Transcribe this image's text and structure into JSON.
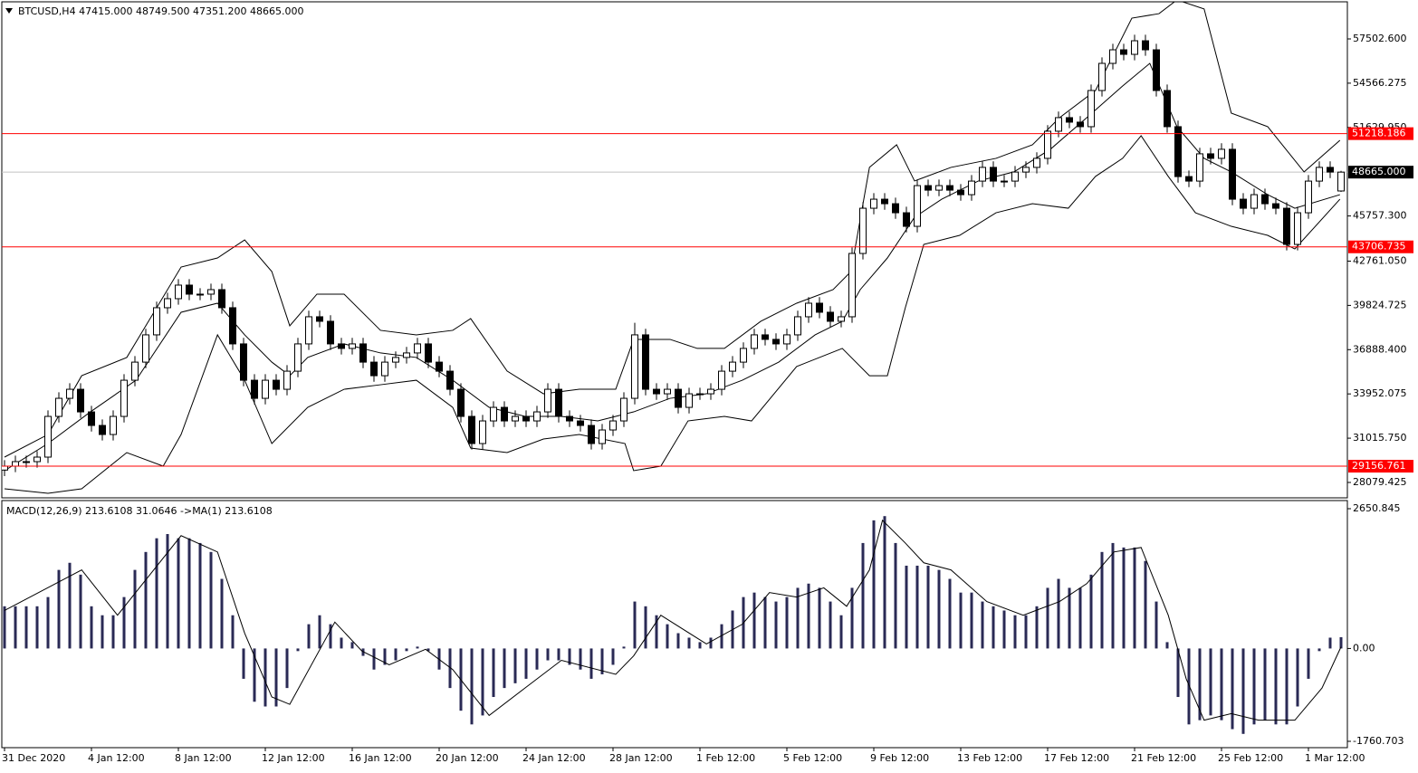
{
  "chart_data": [
    {
      "type": "candlestick",
      "title": "BTCUSD,H4  47415.000 48749.500 47351.200 48665.000",
      "categories": [
        "31 Dec 2020",
        null,
        null,
        null,
        null,
        null,
        null,
        null,
        "4 Jan 12:00",
        null,
        null,
        null,
        null,
        null,
        null,
        null,
        "8 Jan 12:00",
        null,
        null,
        null,
        null,
        null,
        null,
        null,
        "12 Jan 12:00",
        null,
        null,
        null,
        null,
        null,
        null,
        null,
        "16 Jan 12:00",
        null,
        null,
        null,
        null,
        null,
        null,
        null,
        "20 Jan 12:00",
        null,
        null,
        null,
        null,
        null,
        null,
        null,
        "24 Jan 12:00",
        null,
        null,
        null,
        null,
        null,
        null,
        null,
        "28 Jan 12:00",
        null,
        null,
        null,
        null,
        null,
        null,
        null,
        "1 Feb 12:00",
        null,
        null,
        null,
        null,
        null,
        null,
        null,
        "5 Feb 12:00",
        null,
        null,
        null,
        null,
        null,
        null,
        null,
        "9 Feb 12:00",
        null,
        null,
        null,
        null,
        null,
        null,
        null,
        "13 Feb 12:00",
        null,
        null,
        null,
        null,
        null,
        null,
        null,
        "17 Feb 12:00",
        null,
        null,
        null,
        null,
        null,
        null,
        null,
        "21 Feb 12:00",
        null,
        null,
        null,
        null,
        null,
        null,
        null,
        "25 Feb 12:00",
        null,
        null,
        null,
        null,
        null,
        null,
        null,
        "1 Mar 12:00",
        null,
        null,
        null
      ],
      "open": [
        28900,
        29160,
        29460,
        29460,
        29760,
        32460,
        33660,
        34260,
        32760,
        31860,
        31260,
        32460,
        34860,
        36060,
        37870,
        39670,
        40270,
        41170,
        40570,
        40570,
        40870,
        39670,
        37270,
        34860,
        33660,
        34860,
        34260,
        35460,
        37270,
        39070,
        38770,
        37270,
        36970,
        37270,
        36060,
        35160,
        36060,
        36370,
        36670,
        37270,
        36060,
        35460,
        34260,
        32460,
        30660,
        32160,
        33060,
        32160,
        32460,
        32160,
        32760,
        34260,
        32460,
        32160,
        31860,
        30660,
        31560,
        32160,
        33660,
        37870,
        34260,
        33960,
        34260,
        33060,
        33960,
        33960,
        34260,
        35460,
        36060,
        36970,
        37870,
        37570,
        37270,
        37870,
        39070,
        39970,
        39370,
        38770,
        39070,
        43270,
        46270,
        46870,
        46570,
        45970,
        45070,
        47770,
        47470,
        47770,
        47470,
        47170,
        48070,
        48980,
        48070,
        48070,
        48670,
        48980,
        49580,
        51380,
        52280,
        51980,
        51680,
        54080,
        55880,
        56780,
        56480,
        57380,
        56780,
        54080,
        51680,
        48370,
        48070,
        49880,
        49580,
        50180,
        46870,
        46270,
        47170,
        46570,
        46270,
        43870,
        45970,
        48070,
        48980,
        47415
      ],
      "high": [
        29560,
        29860,
        29860,
        30160,
        32860,
        34060,
        34660,
        34660,
        33160,
        32260,
        32860,
        35260,
        36460,
        38270,
        40070,
        40670,
        41570,
        41570,
        40970,
        41270,
        41270,
        40070,
        37670,
        35260,
        35260,
        35260,
        35860,
        37670,
        39470,
        39470,
        39170,
        37670,
        37670,
        37670,
        36460,
        36460,
        36770,
        37070,
        37670,
        37670,
        36460,
        35860,
        34660,
        32860,
        32560,
        33460,
        33460,
        32860,
        32860,
        33160,
        34660,
        34660,
        32860,
        32560,
        32260,
        31960,
        32560,
        34060,
        38670,
        38270,
        34660,
        34660,
        34660,
        34360,
        34360,
        34660,
        35860,
        36460,
        37370,
        38270,
        38270,
        37970,
        38270,
        39470,
        40370,
        40370,
        39770,
        39470,
        43670,
        46670,
        47270,
        47270,
        46970,
        46370,
        48170,
        48170,
        48170,
        48170,
        47870,
        48470,
        49380,
        49380,
        48470,
        49070,
        49380,
        49980,
        51780,
        52680,
        52680,
        52380,
        54480,
        56280,
        57180,
        57180,
        57780,
        57780,
        57180,
        54480,
        52080,
        48770,
        50280,
        50280,
        50580,
        50580,
        47270,
        47570,
        47570,
        46970,
        46670,
        46370,
        48470,
        49380,
        49380,
        48749.5
      ],
      "low": [
        28500,
        28760,
        29060,
        29060,
        29360,
        32060,
        33260,
        32360,
        31460,
        30860,
        30860,
        32060,
        34460,
        35660,
        37470,
        39270,
        39870,
        40170,
        40170,
        40170,
        39270,
        36870,
        34460,
        33260,
        33260,
        33860,
        33860,
        35060,
        36870,
        38370,
        36870,
        36570,
        36570,
        35660,
        34760,
        34760,
        35660,
        35970,
        36270,
        35660,
        35060,
        33860,
        32060,
        30260,
        30260,
        31760,
        31760,
        31760,
        31760,
        31760,
        32360,
        32060,
        31760,
        31460,
        30260,
        30260,
        31160,
        31760,
        33260,
        33860,
        33560,
        33560,
        32660,
        32660,
        33560,
        33560,
        33860,
        35060,
        35660,
        36570,
        37170,
        36870,
        36870,
        37470,
        38670,
        38970,
        38370,
        38370,
        38670,
        42870,
        45870,
        46170,
        45570,
        44670,
        44670,
        47070,
        47070,
        47070,
        46770,
        46770,
        47670,
        47670,
        47670,
        47670,
        48270,
        48580,
        49180,
        50980,
        51580,
        51280,
        51280,
        53680,
        55480,
        56080,
        56080,
        56380,
        53680,
        51280,
        47970,
        47670,
        47670,
        49180,
        49180,
        46470,
        45870,
        45870,
        46170,
        45870,
        43470,
        43470,
        45570,
        47670,
        48270,
        47351.2
      ],
      "close": [
        29160,
        29460,
        29460,
        29760,
        32460,
        33660,
        34260,
        32760,
        31860,
        31260,
        32460,
        34860,
        36060,
        37870,
        39670,
        40270,
        41170,
        40570,
        40570,
        40870,
        39670,
        37270,
        34860,
        33660,
        34860,
        34260,
        35460,
        37270,
        39070,
        38770,
        37270,
        36970,
        37270,
        36060,
        35160,
        36060,
        36370,
        36670,
        37270,
        36060,
        35460,
        34260,
        32460,
        30660,
        32160,
        33060,
        32160,
        32460,
        32160,
        32760,
        34260,
        32460,
        32160,
        31860,
        30660,
        31560,
        32160,
        33660,
        37870,
        34260,
        33960,
        34260,
        33060,
        33960,
        33960,
        34260,
        35460,
        36060,
        36970,
        37870,
        37570,
        37270,
        37870,
        39070,
        39970,
        39370,
        38770,
        39070,
        43270,
        46270,
        46870,
        46570,
        45970,
        45070,
        47770,
        47470,
        47770,
        47470,
        47170,
        48070,
        48980,
        48070,
        48070,
        48670,
        48980,
        49580,
        51380,
        52280,
        51980,
        51680,
        54080,
        55880,
        56780,
        56480,
        57380,
        56780,
        54080,
        51680,
        48370,
        48070,
        49880,
        49580,
        50180,
        46870,
        46270,
        47170,
        46570,
        46270,
        43870,
        45970,
        48070,
        48980,
        48670,
        48665
      ],
      "up_color": "#ffffff",
      "down_color": "#000000",
      "wick_color": "#000000",
      "lines": [
        {
          "color": "#000000",
          "x": [
            0,
            4,
            7.9,
            12.1,
            16.25,
            19.6,
            22.1,
            24.6,
            26.25,
            27.9,
            31.25,
            34.6,
            37.9,
            41.25,
            44.6,
            47.9,
            51.25,
            54.6,
            57.9,
            61.25,
            64.6,
            67.9,
            71.25,
            74.6,
            77.1,
            78.75,
            81.25,
            83.75,
            86.25,
            89.6,
            92.9,
            96.25,
            99.6,
            102.9,
            105.4,
            107.9,
            110.4,
            112.9,
            116.25,
            118.75,
            122.9
          ],
          "values": [
            28860,
            30660,
            32760,
            34860,
            39370,
            39970,
            37870,
            36060,
            35160,
            36370,
            37270,
            36670,
            36370,
            34860,
            33060,
            32460,
            32460,
            32160,
            32760,
            33660,
            33960,
            34860,
            36060,
            37870,
            38770,
            40870,
            42970,
            45670,
            46870,
            48070,
            48680,
            50180,
            52280,
            54380,
            55880,
            51680,
            49580,
            48680,
            47170,
            46270,
            47170
          ]
        },
        {
          "color": "#000000",
          "x": [
            0,
            4,
            7.1,
            11.25,
            16.25,
            19.6,
            22.1,
            24.6,
            26.25,
            28.75,
            31.25,
            34.6,
            37.9,
            41.25,
            42.9,
            46.25,
            49.6,
            52.9,
            56.25,
            57.9,
            61.25,
            63.75,
            66.25,
            69.6,
            72.9,
            76.25,
            77.9,
            79.6,
            82.1,
            83.75,
            87.1,
            91.25,
            94.6,
            97.1,
            100.4,
            103.75,
            106.25,
            107.9,
            110.4,
            112.9,
            116.25,
            119.6,
            122.9
          ],
          "values": [
            29760,
            31260,
            35160,
            36370,
            42370,
            42970,
            44170,
            42070,
            38470,
            40570,
            40570,
            38170,
            37870,
            38170,
            38950,
            35470,
            33960,
            34260,
            34260,
            37570,
            37570,
            36970,
            36970,
            38770,
            39970,
            40870,
            42070,
            48980,
            50480,
            48080,
            48980,
            49580,
            50480,
            52280,
            54080,
            58880,
            59180,
            60090,
            59490,
            52580,
            51680,
            48680,
            50780
          ]
        },
        {
          "color": "#000000",
          "x": [
            0,
            4,
            7.1,
            11.25,
            14.6,
            16.25,
            19.6,
            22.1,
            24.6,
            27.9,
            31.25,
            34.6,
            37.9,
            41.25,
            42.9,
            46.25,
            49.6,
            52.9,
            57.1,
            57.9,
            60.4,
            62.9,
            66.25,
            68.75,
            72.9,
            77.1,
            79.6,
            81.25,
            82.9,
            84.6,
            87.9,
            91.25,
            94.6,
            97.9,
            100.4,
            102.9,
            104.6,
            107.1,
            109.6,
            112.9,
            116.25,
            118.75,
            122.9
          ],
          "values": [
            27660,
            27360,
            27660,
            30060,
            29160,
            31260,
            37870,
            34860,
            30660,
            33060,
            34260,
            34560,
            34860,
            33060,
            30360,
            30060,
            30960,
            31260,
            30660,
            28860,
            29160,
            32160,
            32460,
            32160,
            35770,
            36970,
            35160,
            35160,
            39670,
            43870,
            44470,
            45970,
            46570,
            46270,
            48380,
            49580,
            51080,
            48380,
            45970,
            45070,
            44470,
            43570,
            46870
          ]
        }
      ],
      "price_lines": [
        51218.186,
        43706.735,
        29156.761
      ],
      "price_line_color": "#ff0000",
      "current_price": {
        "value": 48665,
        "label": "48665.000"
      },
      "current_price_color": "#c0c0c0",
      "ylim": [
        27058,
        59904
      ],
      "yticks": [
        {
          "value": 57502.6,
          "label": "57502.600"
        },
        54566.275,
        {
          "value": 51629.95,
          "label": "51629.950"
        },
        {
          "value": 45757.3,
          "label": "45757.300"
        },
        {
          "value": 42761.05,
          "label": "42761.050"
        },
        39824.725,
        {
          "value": 36888.4,
          "label": "36888.400"
        },
        33952.075,
        {
          "value": 31015.75,
          "label": "31015.750"
        },
        28079.425
      ]
    },
    {
      "type": "macd",
      "title": "MACD(12,26,9) 213.6108 31.0646  ->MA(1) 213.6108",
      "values": [
        800,
        800,
        800,
        800,
        975,
        1490,
        1625,
        1400,
        800,
        630,
        630,
        975,
        1490,
        1830,
        2090,
        2170,
        2090,
        2090,
        2000,
        1830,
        1320,
        630,
        -575,
        -1010,
        -1100,
        -1100,
        -750,
        -50,
        460,
        630,
        460,
        205,
        120,
        -140,
        -400,
        -310,
        -225,
        -50,
        35,
        -50,
        -400,
        -750,
        -1180,
        -1440,
        -1270,
        -920,
        -750,
        -660,
        -575,
        -400,
        -225,
        -225,
        -310,
        -400,
        -575,
        -490,
        -310,
        35,
        890,
        800,
        630,
        460,
        290,
        205,
        120,
        205,
        460,
        720,
        975,
        1060,
        975,
        890,
        975,
        1150,
        1230,
        1150,
        890,
        630,
        1150,
        2000,
        2430,
        2510,
        2000,
        1570,
        1570,
        1570,
        1490,
        1320,
        1060,
        1060,
        890,
        800,
        720,
        630,
        630,
        800,
        1150,
        1320,
        1150,
        1150,
        1400,
        1830,
        2000,
        1915,
        1915,
        1660,
        890,
        120,
        -920,
        -1440,
        -1360,
        -1270,
        -1360,
        -1530,
        -1620,
        -1440,
        -1360,
        -1440,
        -1440,
        -1100,
        -575,
        -50,
        205,
        213.6108
      ],
      "color": "#2a2a55",
      "signal": {
        "color": "#000000",
        "x": [
          0,
          7.1,
          10.4,
          16.25,
          19.6,
          22.1,
          24.6,
          26.25,
          30.4,
          32.9,
          35.4,
          38.75,
          41.25,
          44.6,
          47.9,
          51.25,
          56.25,
          57.9,
          60.4,
          64.6,
          67.9,
          70.4,
          72.9,
          75.4,
          77.5,
          79.6,
          80.8,
          82.9,
          84.6,
          87.1,
          90.4,
          93.75,
          97.1,
          99.6,
          102.1,
          104.6,
          107.1,
          108.75,
          110.4,
          112.9,
          115.4,
          118.75,
          121.25,
          123
        ],
        "values": [
          720,
          1490,
          630,
          2140,
          1830,
          290,
          -920,
          -1060,
          500,
          -50,
          -310,
          -15,
          -400,
          -1270,
          -750,
          -225,
          -490,
          -140,
          630,
          85,
          460,
          1060,
          975,
          1150,
          800,
          1490,
          2430,
          2000,
          1625,
          1490,
          890,
          630,
          890,
          1230,
          1830,
          1915,
          630,
          -575,
          -1360,
          -1235,
          -1360,
          -1360,
          -750,
          31.0646
        ]
      },
      "ylim": [
        -1881,
        2771
      ],
      "yticks": [
        2650.845,
        {
          "value": 0,
          "label": "0.00"
        },
        -1760.703
      ]
    }
  ]
}
